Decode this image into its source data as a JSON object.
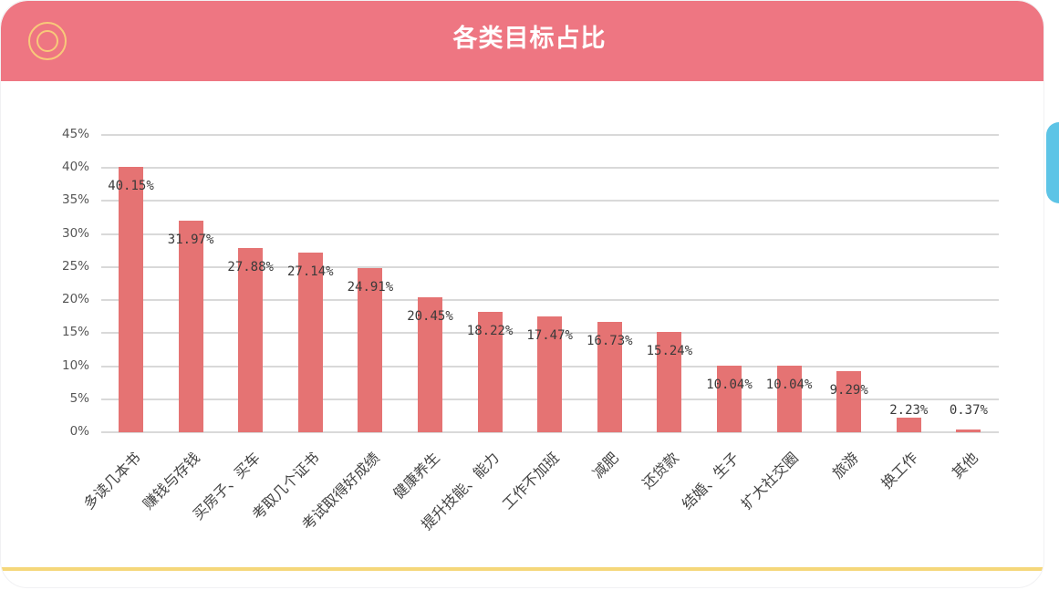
{
  "header": {
    "title": "各类目标占比",
    "icon": "target-circle-icon",
    "bg_color": "#EE7682",
    "icon_color": "#F8C97A"
  },
  "colors": {
    "bar": "#E57373",
    "grid": "#d9d9d9",
    "bottom_line": "#F5D77A",
    "side_tab": "#5DC4E6"
  },
  "chart_data": {
    "type": "bar",
    "title": "各类目标占比",
    "xlabel": "",
    "ylabel": "",
    "ylim": [
      0,
      45
    ],
    "yticks": [
      "0%",
      "5%",
      "10%",
      "15%",
      "20%",
      "25%",
      "30%",
      "35%",
      "40%",
      "45%"
    ],
    "grid": true,
    "legend": "none",
    "categories": [
      "多读几本书",
      "赚钱与存钱",
      "买房子、买车",
      "考取几个证书",
      "考试取得好成绩",
      "健康养生",
      "提升技能、能力",
      "工作不加班",
      "减肥",
      "还贷款",
      "结婚、生子",
      "扩大社交圈",
      "旅游",
      "换工作",
      "其他"
    ],
    "values": [
      40.15,
      31.97,
      27.88,
      27.14,
      24.91,
      20.45,
      18.22,
      17.47,
      16.73,
      15.24,
      10.04,
      10.04,
      9.29,
      2.23,
      0.37
    ],
    "value_labels": [
      "40.15%",
      "31.97%",
      "27.88%",
      "27.14%",
      "24.91%",
      "20.45%",
      "18.22%",
      "17.47%",
      "16.73%",
      "15.24%",
      "10.04%",
      "10.04%",
      "9.29%",
      "2.23%",
      "0.37%"
    ]
  }
}
